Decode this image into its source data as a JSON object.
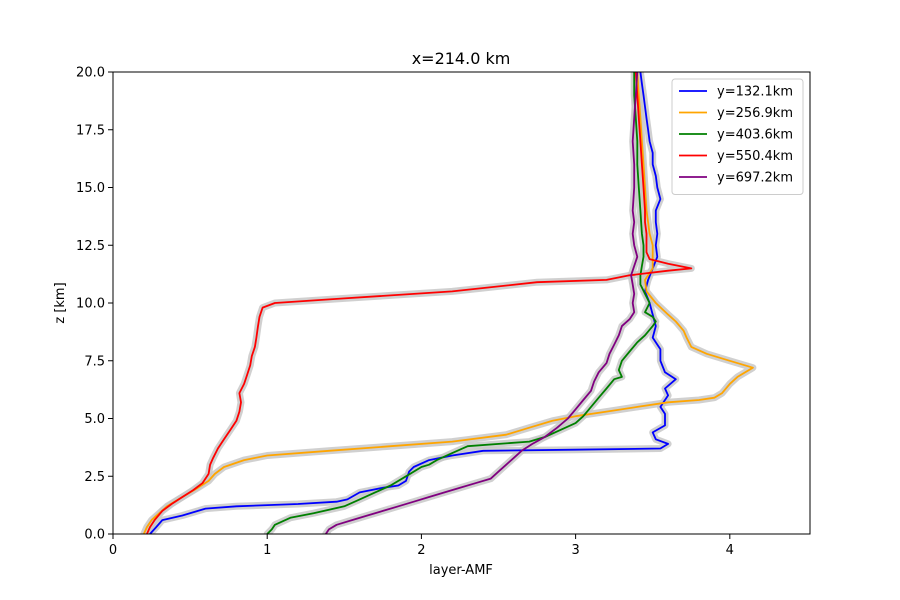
{
  "chart_data": {
    "type": "line",
    "title": "x=214.0 km",
    "xlabel": "layer-AMF",
    "ylabel": "z [km]",
    "xlim": [
      0,
      4.52
    ],
    "ylim": [
      0,
      20
    ],
    "xticks": [
      0,
      1,
      2,
      3,
      4
    ],
    "xtick_labels": [
      "0",
      "1",
      "2",
      "3",
      "4"
    ],
    "yticks": [
      0,
      2.5,
      5,
      7.5,
      10,
      12.5,
      15,
      17.5,
      20
    ],
    "ytick_labels": [
      "0.0",
      "2.5",
      "5.0",
      "7.5",
      "10.0",
      "12.5",
      "15.0",
      "17.5",
      "20.0"
    ],
    "grid": false,
    "legend_position": "top-right",
    "band_color": "#c8c8c8",
    "series": [
      {
        "name": "y=132.1km",
        "color": "#0000ff",
        "points": [
          [
            0.24,
            0
          ],
          [
            0.28,
            0.3
          ],
          [
            0.32,
            0.6
          ],
          [
            0.45,
            0.8
          ],
          [
            0.6,
            1.1
          ],
          [
            0.8,
            1.2
          ],
          [
            1.2,
            1.3
          ],
          [
            1.45,
            1.4
          ],
          [
            1.52,
            1.5
          ],
          [
            1.6,
            1.8
          ],
          [
            1.75,
            2.0
          ],
          [
            1.85,
            2.1
          ],
          [
            1.9,
            2.3
          ],
          [
            1.92,
            2.7
          ],
          [
            1.95,
            2.9
          ],
          [
            2.05,
            3.2
          ],
          [
            2.2,
            3.4
          ],
          [
            2.4,
            3.6
          ],
          [
            3.0,
            3.65
          ],
          [
            3.55,
            3.7
          ],
          [
            3.6,
            3.9
          ],
          [
            3.52,
            4.1
          ],
          [
            3.5,
            4.4
          ],
          [
            3.58,
            4.7
          ],
          [
            3.58,
            5.2
          ],
          [
            3.55,
            5.5
          ],
          [
            3.6,
            6.0
          ],
          [
            3.58,
            6.3
          ],
          [
            3.65,
            6.7
          ],
          [
            3.58,
            7.0
          ],
          [
            3.55,
            7.5
          ],
          [
            3.55,
            8.0
          ],
          [
            3.5,
            8.5
          ],
          [
            3.52,
            9.0
          ],
          [
            3.5,
            9.5
          ],
          [
            3.48,
            10.0
          ],
          [
            3.45,
            10.5
          ],
          [
            3.47,
            11.0
          ],
          [
            3.5,
            11.5
          ],
          [
            3.53,
            12.0
          ],
          [
            3.52,
            12.5
          ],
          [
            3.53,
            13.0
          ],
          [
            3.52,
            13.5
          ],
          [
            3.52,
            14.0
          ],
          [
            3.55,
            14.5
          ],
          [
            3.53,
            15.0
          ],
          [
            3.52,
            15.5
          ],
          [
            3.5,
            16.0
          ],
          [
            3.5,
            16.5
          ],
          [
            3.48,
            17.0
          ],
          [
            3.47,
            17.5
          ],
          [
            3.46,
            18.0
          ],
          [
            3.45,
            18.5
          ],
          [
            3.44,
            19.0
          ],
          [
            3.43,
            19.5
          ],
          [
            3.42,
            20.0
          ]
        ]
      },
      {
        "name": "y=256.9km",
        "color": "#ffa500",
        "points": [
          [
            0.2,
            0
          ],
          [
            0.22,
            0.3
          ],
          [
            0.25,
            0.6
          ],
          [
            0.3,
            0.9
          ],
          [
            0.35,
            1.2
          ],
          [
            0.45,
            1.6
          ],
          [
            0.55,
            2.0
          ],
          [
            0.62,
            2.3
          ],
          [
            0.66,
            2.6
          ],
          [
            0.72,
            2.9
          ],
          [
            0.85,
            3.2
          ],
          [
            1.0,
            3.4
          ],
          [
            1.4,
            3.6
          ],
          [
            1.8,
            3.8
          ],
          [
            2.2,
            4.0
          ],
          [
            2.55,
            4.3
          ],
          [
            2.7,
            4.6
          ],
          [
            2.85,
            4.9
          ],
          [
            3.0,
            5.1
          ],
          [
            3.2,
            5.3
          ],
          [
            3.4,
            5.5
          ],
          [
            3.6,
            5.7
          ],
          [
            3.8,
            5.8
          ],
          [
            3.9,
            5.9
          ],
          [
            3.95,
            6.1
          ],
          [
            4.0,
            6.5
          ],
          [
            4.05,
            6.8
          ],
          [
            4.15,
            7.2
          ],
          [
            4.0,
            7.5
          ],
          [
            3.85,
            7.8
          ],
          [
            3.75,
            8.1
          ],
          [
            3.72,
            8.5
          ],
          [
            3.7,
            8.8
          ],
          [
            3.65,
            9.2
          ],
          [
            3.6,
            9.5
          ],
          [
            3.52,
            10.0
          ],
          [
            3.46,
            10.5
          ],
          [
            3.45,
            11.0
          ],
          [
            3.5,
            11.5
          ],
          [
            3.5,
            12.0
          ],
          [
            3.5,
            12.5
          ],
          [
            3.48,
            13.0
          ],
          [
            3.47,
            13.5
          ],
          [
            3.46,
            14.0
          ],
          [
            3.45,
            15.0
          ],
          [
            3.44,
            16.0
          ],
          [
            3.43,
            17.0
          ],
          [
            3.42,
            18.0
          ],
          [
            3.41,
            19.0
          ],
          [
            3.4,
            20.0
          ]
        ]
      },
      {
        "name": "y=403.6km",
        "color": "#008000",
        "points": [
          [
            1.0,
            0
          ],
          [
            1.03,
            0.2
          ],
          [
            1.05,
            0.4
          ],
          [
            1.15,
            0.7
          ],
          [
            1.3,
            0.9
          ],
          [
            1.5,
            1.2
          ],
          [
            1.6,
            1.5
          ],
          [
            1.7,
            1.8
          ],
          [
            1.8,
            2.1
          ],
          [
            1.9,
            2.5
          ],
          [
            2.0,
            2.9
          ],
          [
            2.05,
            3.0
          ],
          [
            2.1,
            3.2
          ],
          [
            2.2,
            3.5
          ],
          [
            2.3,
            3.8
          ],
          [
            2.7,
            4.0
          ],
          [
            2.8,
            4.2
          ],
          [
            2.9,
            4.5
          ],
          [
            3.0,
            4.8
          ],
          [
            3.05,
            5.1
          ],
          [
            3.1,
            5.5
          ],
          [
            3.15,
            5.9
          ],
          [
            3.2,
            6.3
          ],
          [
            3.25,
            6.7
          ],
          [
            3.3,
            6.8
          ],
          [
            3.28,
            7.1
          ],
          [
            3.3,
            7.5
          ],
          [
            3.35,
            7.9
          ],
          [
            3.4,
            8.3
          ],
          [
            3.45,
            8.6
          ],
          [
            3.5,
            9.0
          ],
          [
            3.52,
            9.2
          ],
          [
            3.5,
            9.4
          ],
          [
            3.45,
            9.6
          ],
          [
            3.48,
            10.0
          ],
          [
            3.45,
            10.4
          ],
          [
            3.42,
            10.8
          ],
          [
            3.42,
            11.2
          ],
          [
            3.43,
            11.6
          ],
          [
            3.44,
            12.0
          ],
          [
            3.44,
            12.5
          ],
          [
            3.43,
            13.0
          ],
          [
            3.42,
            14.0
          ],
          [
            3.41,
            15.0
          ],
          [
            3.4,
            16.0
          ],
          [
            3.4,
            17.0
          ],
          [
            3.39,
            18.0
          ],
          [
            3.38,
            19.0
          ],
          [
            3.38,
            20.0
          ]
        ]
      },
      {
        "name": "y=550.4km",
        "color": "#ff0000",
        "points": [
          [
            0.22,
            0
          ],
          [
            0.24,
            0.3
          ],
          [
            0.27,
            0.6
          ],
          [
            0.32,
            1.0
          ],
          [
            0.38,
            1.3
          ],
          [
            0.45,
            1.6
          ],
          [
            0.52,
            1.9
          ],
          [
            0.58,
            2.2
          ],
          [
            0.62,
            2.6
          ],
          [
            0.63,
            3.0
          ],
          [
            0.65,
            3.3
          ],
          [
            0.68,
            3.7
          ],
          [
            0.72,
            4.1
          ],
          [
            0.76,
            4.5
          ],
          [
            0.8,
            4.9
          ],
          [
            0.82,
            5.3
          ],
          [
            0.83,
            5.7
          ],
          [
            0.82,
            6.1
          ],
          [
            0.85,
            6.5
          ],
          [
            0.87,
            6.9
          ],
          [
            0.89,
            7.3
          ],
          [
            0.9,
            7.7
          ],
          [
            0.92,
            8.1
          ],
          [
            0.93,
            8.5
          ],
          [
            0.94,
            9.0
          ],
          [
            0.95,
            9.4
          ],
          [
            0.97,
            9.8
          ],
          [
            1.05,
            10.0
          ],
          [
            1.5,
            10.2
          ],
          [
            2.2,
            10.5
          ],
          [
            2.75,
            10.9
          ],
          [
            3.2,
            11.0
          ],
          [
            3.35,
            11.2
          ],
          [
            3.6,
            11.4
          ],
          [
            3.75,
            11.5
          ],
          [
            3.6,
            11.7
          ],
          [
            3.48,
            11.9
          ],
          [
            3.46,
            12.2
          ],
          [
            3.46,
            12.6
          ],
          [
            3.46,
            13.0
          ],
          [
            3.45,
            13.5
          ],
          [
            3.45,
            14.0
          ],
          [
            3.44,
            15.0
          ],
          [
            3.43,
            16.0
          ],
          [
            3.42,
            17.0
          ],
          [
            3.41,
            18.0
          ],
          [
            3.4,
            19.0
          ],
          [
            3.39,
            20.0
          ]
        ]
      },
      {
        "name": "y=697.2km",
        "color": "#800080",
        "points": [
          [
            1.38,
            0
          ],
          [
            1.4,
            0.2
          ],
          [
            1.45,
            0.4
          ],
          [
            1.55,
            0.6
          ],
          [
            1.65,
            0.8
          ],
          [
            1.75,
            1.0
          ],
          [
            1.85,
            1.2
          ],
          [
            1.95,
            1.4
          ],
          [
            2.05,
            1.6
          ],
          [
            2.15,
            1.8
          ],
          [
            2.25,
            2.0
          ],
          [
            2.35,
            2.2
          ],
          [
            2.45,
            2.4
          ],
          [
            2.5,
            2.7
          ],
          [
            2.55,
            3.0
          ],
          [
            2.6,
            3.3
          ],
          [
            2.65,
            3.6
          ],
          [
            2.72,
            3.9
          ],
          [
            2.8,
            4.2
          ],
          [
            2.88,
            4.6
          ],
          [
            2.95,
            5.0
          ],
          [
            3.0,
            5.4
          ],
          [
            3.05,
            5.8
          ],
          [
            3.1,
            6.2
          ],
          [
            3.12,
            6.6
          ],
          [
            3.15,
            7.0
          ],
          [
            3.2,
            7.4
          ],
          [
            3.22,
            7.8
          ],
          [
            3.25,
            8.2
          ],
          [
            3.28,
            8.6
          ],
          [
            3.3,
            9.0
          ],
          [
            3.35,
            9.3
          ],
          [
            3.38,
            9.6
          ],
          [
            3.37,
            10.0
          ],
          [
            3.38,
            10.4
          ],
          [
            3.37,
            10.8
          ],
          [
            3.36,
            11.2
          ],
          [
            3.38,
            11.6
          ],
          [
            3.4,
            12.0
          ],
          [
            3.38,
            12.5
          ],
          [
            3.37,
            13.0
          ],
          [
            3.38,
            13.5
          ],
          [
            3.37,
            14.0
          ],
          [
            3.38,
            15.0
          ],
          [
            3.38,
            16.0
          ],
          [
            3.37,
            17.0
          ],
          [
            3.38,
            18.0
          ],
          [
            3.39,
            19.0
          ],
          [
            3.4,
            20.0
          ]
        ]
      }
    ]
  }
}
